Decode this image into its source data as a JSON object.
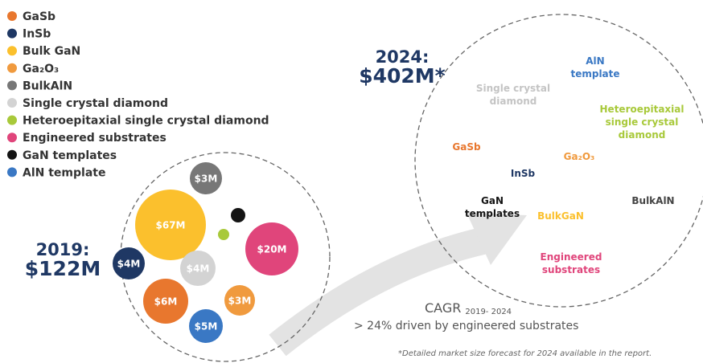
{
  "legend": [
    {
      "label": "GaSb",
      "color": "#e8772e"
    },
    {
      "label": "InSb",
      "color": "#1f3864"
    },
    {
      "label": "Bulk GaN",
      "color": "#fbc02d"
    },
    {
      "label": "Ga₂O₃",
      "color": "#f09a3e"
    },
    {
      "label": "BulkAlN",
      "color": "#777777"
    },
    {
      "label": "Single crystal diamond",
      "color": "#d3d3d3"
    },
    {
      "label": "Heteroepitaxial single crystal diamond",
      "color": "#a8c93a"
    },
    {
      "label": "Engineered substrates",
      "color": "#e0457b"
    },
    {
      "label": "GaN templates",
      "color": "#141414"
    },
    {
      "label": "AlN template",
      "color": "#3a78c4"
    }
  ],
  "left": {
    "year": "2019:",
    "total": "$122M",
    "bubbles": [
      {
        "label": "$3M",
        "color": "#777777"
      },
      {
        "label": "",
        "color": "#141414"
      },
      {
        "label": "$67M",
        "color": "#fbc02d"
      },
      {
        "label": "",
        "color": "#a8c93a"
      },
      {
        "label": "$20M",
        "color": "#e0457b"
      },
      {
        "label": "$4M",
        "color": "#1f3864"
      },
      {
        "label": "$4M",
        "color": "#d3d3d3"
      },
      {
        "label": "$6M",
        "color": "#e8772e"
      },
      {
        "label": "$3M",
        "color": "#f09a3e"
      },
      {
        "label": "$5M",
        "color": "#3a78c4"
      }
    ]
  },
  "right": {
    "year": "2024:",
    "total": "$402M*",
    "labels": [
      {
        "lines": [
          "AlN",
          "template"
        ],
        "color": "#3a78c4"
      },
      {
        "lines": [
          "Single crystal",
          "diamond"
        ],
        "color": "#c4c4c4"
      },
      {
        "lines": [
          "Heteroepitaxial",
          "single crystal",
          "diamond"
        ],
        "color": "#a8c93a"
      },
      {
        "lines": [
          "GaSb"
        ],
        "color": "#e8772e"
      },
      {
        "lines": [
          "Ga₂O₃"
        ],
        "color": "#f09a3e"
      },
      {
        "lines": [
          "InSb"
        ],
        "color": "#1f3864"
      },
      {
        "lines": [
          "GaN",
          "templates"
        ],
        "color": "#141414"
      },
      {
        "lines": [
          "BulkGaN"
        ],
        "color": "#fbc02d"
      },
      {
        "lines": [
          "BulkAlN"
        ],
        "color": "#444444"
      },
      {
        "lines": [
          "Engineered",
          "substrates"
        ],
        "color": "#e0457b"
      }
    ]
  },
  "cagr": {
    "label": "CAGR",
    "period": "2019- 2024",
    "text": "> 24% driven by engineered substrates"
  },
  "footnote": "*Detailed market size forecast for 2024 available in the report."
}
